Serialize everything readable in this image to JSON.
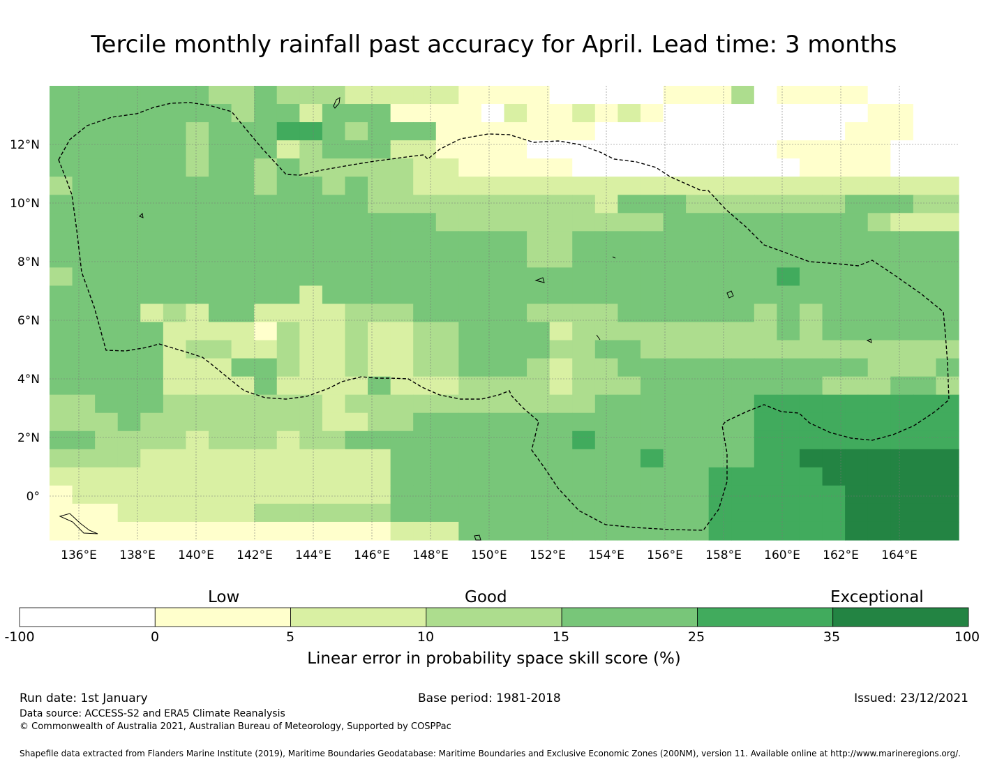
{
  "title": "Tercile monthly rainfall past accuracy for April. Lead time: 3 months",
  "map": {
    "lon_labels": [
      "136°E",
      "138°E",
      "140°E",
      "142°E",
      "144°E",
      "146°E",
      "148°E",
      "150°E",
      "152°E",
      "154°E",
      "156°E",
      "158°E",
      "160°E",
      "162°E",
      "164°E"
    ],
    "lat_labels": [
      "12°N",
      "10°N",
      "8°N",
      "6°N",
      "4°N",
      "2°N",
      "0°"
    ],
    "lon_values": [
      136,
      138,
      140,
      142,
      144,
      146,
      148,
      150,
      152,
      154,
      156,
      158,
      160,
      162,
      164
    ],
    "lat_values": [
      12,
      10,
      8,
      6,
      4,
      2,
      0
    ],
    "extent": {
      "lon_min": 135,
      "lon_max": 166,
      "lat_min": -1.5,
      "lat_max": 14
    },
    "grid_resolution_deg": 0.833,
    "eez_boundary_label": "Exclusive Economic Zone (dashed line)"
  },
  "colorbar": {
    "categories": [
      {
        "label": "Low"
      },
      {
        "label": "Good"
      },
      {
        "label": "Exceptional"
      }
    ],
    "ticks": [
      "-100",
      "0",
      "5",
      "10",
      "15",
      "25",
      "35",
      "100"
    ],
    "bins": [
      {
        "range": "-100 to 0",
        "color": "#ffffff"
      },
      {
        "range": "0 to 5",
        "color": "#ffffcc"
      },
      {
        "range": "5 to 10",
        "color": "#d9f0a3"
      },
      {
        "range": "10 to 15",
        "color": "#addd8e"
      },
      {
        "range": "15 to 25",
        "color": "#78c679"
      },
      {
        "range": "25 to 35",
        "color": "#41ab5d"
      },
      {
        "range": "35 to 100",
        "color": "#238443"
      }
    ],
    "label": "Linear error in probability space skill score (%)"
  },
  "footer": {
    "run_date": "Run date: 1st January",
    "base_period": "Base period: 1981-2018",
    "issued": "Issued: 23/12/2021",
    "data_source": "Data source: ACCESS-S2 and ERA5 Climate Reanalysis",
    "copyright": "© Commonwealth of Australia 2021, Australian Bureau of Meteorology, Supported by COSPPac",
    "shapefile": "Shapefile data extracted from Flanders Marine Institute (2019), Maritime Boundaries Geodatabase: Maritime Boundaries and Exclusive Economic Zones (200NM), version 11. Available online at http://www.marineregions.org/."
  }
}
